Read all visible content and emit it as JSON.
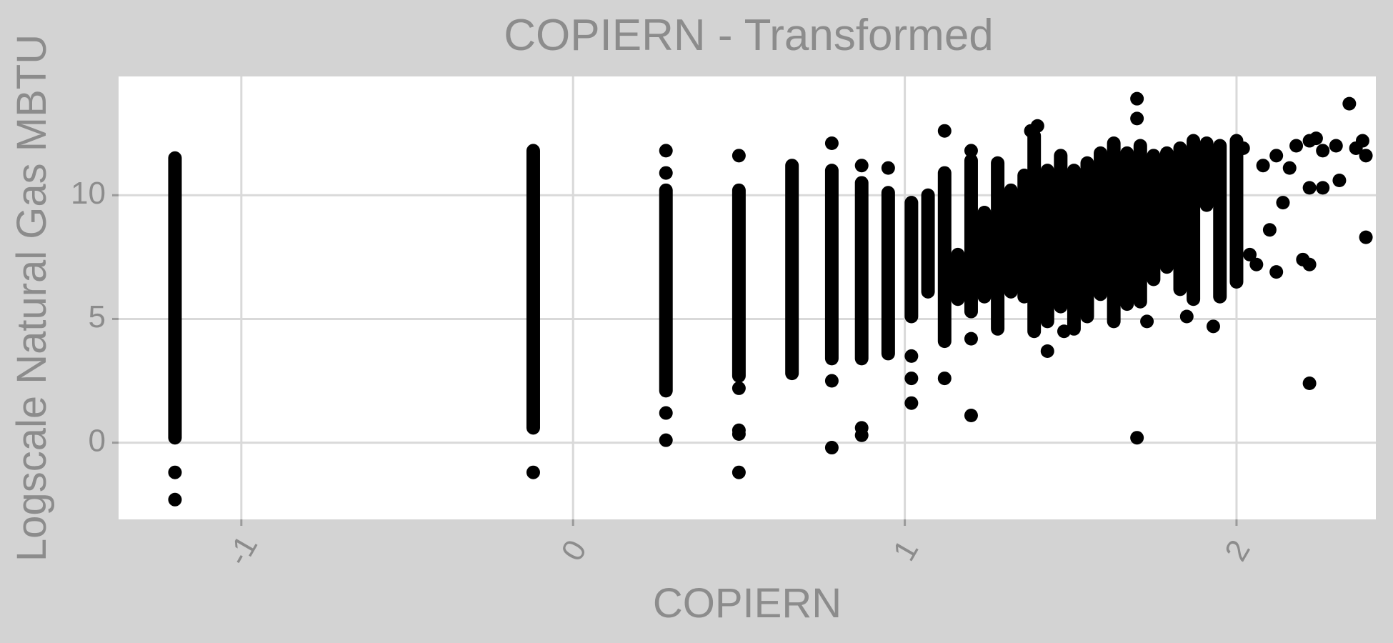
{
  "chart_data": {
    "type": "scatter",
    "title": "COPIERN - Transformed",
    "xlabel": "COPIERN",
    "ylabel": "Logscale Natural Gas MBTU",
    "xlim": [
      -1.37,
      2.42
    ],
    "ylim": [
      -3.1,
      14.8
    ],
    "x_ticks": [
      -1,
      0,
      1,
      2
    ],
    "x_tick_labels": [
      "-1",
      "0",
      "1",
      "2"
    ],
    "y_ticks": [
      0,
      5,
      10
    ],
    "y_tick_labels": [
      "0",
      "5",
      "10"
    ],
    "grid": true,
    "legend": "none",
    "colors": {
      "panel_background": "#ffffff",
      "plot_background": "#d3d3d3",
      "grid": "#d9d9d9",
      "point": "#000000",
      "text": "#8c8c8c"
    },
    "series": [
      {
        "stacks": [
          {
            "x": -1.2,
            "y_min": 0.2,
            "y_max": 11.5
          },
          {
            "x": -0.12,
            "y_min": 0.6,
            "y_max": 11.8
          },
          {
            "x": 0.28,
            "y_min": 2.1,
            "y_max": 10.2
          },
          {
            "x": 0.5,
            "y_min": 2.7,
            "y_max": 10.2
          },
          {
            "x": 0.66,
            "y_min": 2.8,
            "y_max": 11.2
          },
          {
            "x": 0.78,
            "y_min": 3.4,
            "y_max": 11.0
          },
          {
            "x": 0.87,
            "y_min": 3.4,
            "y_max": 10.5
          },
          {
            "x": 0.95,
            "y_min": 3.6,
            "y_max": 10.1
          },
          {
            "x": 1.02,
            "y_min": 5.1,
            "y_max": 9.7
          },
          {
            "x": 1.07,
            "y_min": 6.1,
            "y_max": 10.0
          },
          {
            "x": 1.12,
            "y_min": 4.1,
            "y_max": 10.9
          },
          {
            "x": 1.16,
            "y_min": 5.8,
            "y_max": 7.6
          },
          {
            "x": 1.2,
            "y_min": 5.3,
            "y_max": 11.4
          },
          {
            "x": 1.24,
            "y_min": 5.9,
            "y_max": 9.3
          },
          {
            "x": 1.28,
            "y_min": 4.6,
            "y_max": 11.3
          },
          {
            "x": 1.32,
            "y_min": 6.1,
            "y_max": 10.2
          },
          {
            "x": 1.36,
            "y_min": 5.9,
            "y_max": 10.8
          },
          {
            "x": 1.39,
            "y_min": 4.5,
            "y_max": 12.4
          },
          {
            "x": 1.43,
            "y_min": 4.9,
            "y_max": 11.0
          },
          {
            "x": 1.47,
            "y_min": 5.5,
            "y_max": 11.6
          },
          {
            "x": 1.51,
            "y_min": 4.6,
            "y_max": 11.0
          },
          {
            "x": 1.55,
            "y_min": 5.1,
            "y_max": 11.3
          },
          {
            "x": 1.59,
            "y_min": 6.0,
            "y_max": 11.7
          },
          {
            "x": 1.63,
            "y_min": 4.9,
            "y_max": 12.1
          },
          {
            "x": 1.67,
            "y_min": 5.6,
            "y_max": 11.7
          },
          {
            "x": 1.71,
            "y_min": 5.7,
            "y_max": 12.0
          },
          {
            "x": 1.75,
            "y_min": 6.6,
            "y_max": 11.6
          },
          {
            "x": 1.79,
            "y_min": 7.1,
            "y_max": 11.7
          },
          {
            "x": 1.83,
            "y_min": 6.2,
            "y_max": 11.9
          },
          {
            "x": 1.87,
            "y_min": 5.8,
            "y_max": 12.2
          },
          {
            "x": 1.91,
            "y_min": 9.6,
            "y_max": 12.1
          },
          {
            "x": 1.95,
            "y_min": 5.9,
            "y_max": 12.0
          },
          {
            "x": 2.0,
            "y_min": 6.5,
            "y_max": 12.2
          }
        ],
        "points": [
          {
            "x": -1.2,
            "y": -1.2
          },
          {
            "x": -1.2,
            "y": -2.3
          },
          {
            "x": -0.12,
            "y": -1.2
          },
          {
            "x": 0.28,
            "y": 11.8
          },
          {
            "x": 0.28,
            "y": 10.9
          },
          {
            "x": 0.28,
            "y": 1.2
          },
          {
            "x": 0.28,
            "y": 0.1
          },
          {
            "x": 0.5,
            "y": 11.6
          },
          {
            "x": 0.5,
            "y": 2.2
          },
          {
            "x": 0.5,
            "y": 0.5
          },
          {
            "x": 0.5,
            "y": 0.35
          },
          {
            "x": 0.5,
            "y": -1.2
          },
          {
            "x": 0.78,
            "y": 12.1
          },
          {
            "x": 0.78,
            "y": 2.5
          },
          {
            "x": 0.78,
            "y": -0.2
          },
          {
            "x": 0.87,
            "y": 11.2
          },
          {
            "x": 0.87,
            "y": 0.6
          },
          {
            "x": 0.87,
            "y": 0.3
          },
          {
            "x": 0.95,
            "y": 11.1
          },
          {
            "x": 1.02,
            "y": 3.5
          },
          {
            "x": 1.02,
            "y": 2.6
          },
          {
            "x": 1.02,
            "y": 1.6
          },
          {
            "x": 1.12,
            "y": 12.6
          },
          {
            "x": 1.12,
            "y": 2.6
          },
          {
            "x": 1.2,
            "y": 11.8
          },
          {
            "x": 1.2,
            "y": 4.2
          },
          {
            "x": 1.2,
            "y": 1.1
          },
          {
            "x": 1.38,
            "y": 12.6
          },
          {
            "x": 1.4,
            "y": 12.8
          },
          {
            "x": 1.43,
            "y": 3.7
          },
          {
            "x": 1.48,
            "y": 4.5
          },
          {
            "x": 1.7,
            "y": 13.9
          },
          {
            "x": 1.7,
            "y": 13.1
          },
          {
            "x": 1.7,
            "y": 0.2
          },
          {
            "x": 1.73,
            "y": 4.9
          },
          {
            "x": 1.85,
            "y": 5.1
          },
          {
            "x": 1.93,
            "y": 4.7
          },
          {
            "x": 2.02,
            "y": 11.9
          },
          {
            "x": 2.04,
            "y": 7.6
          },
          {
            "x": 2.06,
            "y": 7.2
          },
          {
            "x": 2.08,
            "y": 11.2
          },
          {
            "x": 2.1,
            "y": 8.6
          },
          {
            "x": 2.12,
            "y": 11.6
          },
          {
            "x": 2.12,
            "y": 6.9
          },
          {
            "x": 2.14,
            "y": 9.7
          },
          {
            "x": 2.16,
            "y": 11.1
          },
          {
            "x": 2.18,
            "y": 12.0
          },
          {
            "x": 2.2,
            "y": 7.4
          },
          {
            "x": 2.22,
            "y": 12.2
          },
          {
            "x": 2.22,
            "y": 10.3
          },
          {
            "x": 2.22,
            "y": 7.2
          },
          {
            "x": 2.22,
            "y": 2.4
          },
          {
            "x": 2.24,
            "y": 12.3
          },
          {
            "x": 2.26,
            "y": 11.8
          },
          {
            "x": 2.26,
            "y": 10.3
          },
          {
            "x": 2.3,
            "y": 12.0
          },
          {
            "x": 2.31,
            "y": 10.6
          },
          {
            "x": 2.34,
            "y": 13.7
          },
          {
            "x": 2.36,
            "y": 11.9
          },
          {
            "x": 2.38,
            "y": 12.2
          },
          {
            "x": 2.39,
            "y": 11.6
          },
          {
            "x": 2.39,
            "y": 8.3
          }
        ]
      }
    ]
  }
}
